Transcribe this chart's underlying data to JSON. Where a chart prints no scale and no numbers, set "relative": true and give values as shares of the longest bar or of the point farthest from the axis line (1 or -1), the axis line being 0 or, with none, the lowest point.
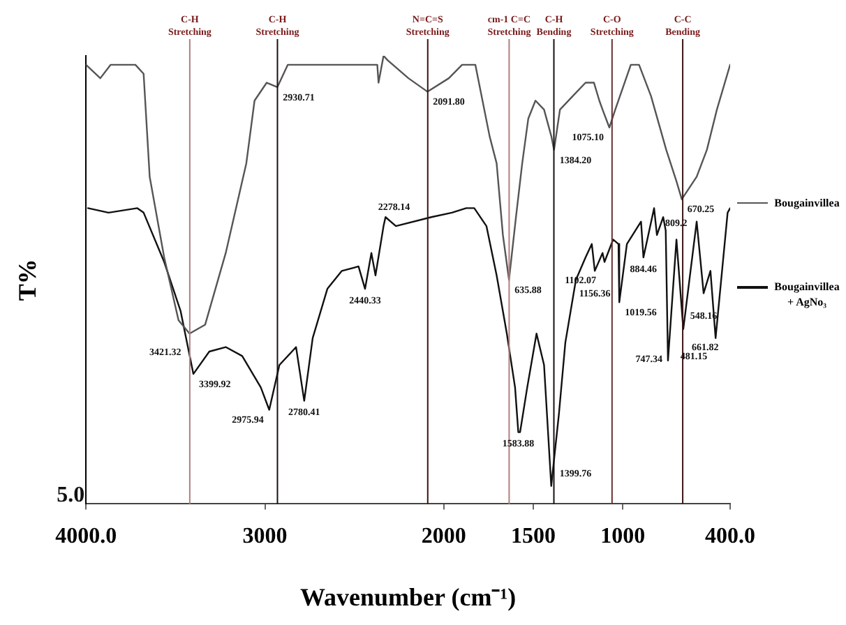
{
  "chart_data": {
    "type": "line",
    "xlabel": "Wavenumber (cm⁻¹)",
    "ylabel": "T%",
    "relative": true,
    "xlim": [
      4000,
      400
    ],
    "xticks": [
      {
        "value": 4000,
        "label": "4000.0"
      },
      3000,
      2000,
      1500,
      1000,
      {
        "value": 400,
        "label": "400.0"
      }
    ],
    "grid": false,
    "legend": "right",
    "marker": "none",
    "line_style": "solid",
    "series": [
      {
        "name": "Bougainvillea",
        "color": "#555555",
        "x": [
          4000,
          3920,
          3862,
          3724,
          3678,
          3644,
          3563,
          3483,
          3421.32,
          3334,
          3219,
          3104,
          3058,
          2990,
          2930.71,
          2872,
          2372,
          2365,
          2337,
          2314,
          2198,
          2091.8,
          1972,
          1898,
          1824,
          1744,
          1705,
          1670,
          1635.88,
          1597,
          1562,
          1528,
          1488,
          1440,
          1399,
          1384.2,
          1351,
          1280,
          1208,
          1161,
          1131,
          1113,
          1075.1,
          1042,
          955,
          909,
          842,
          757,
          700,
          670.25,
          587,
          530,
          474,
          400
        ],
        "values": [
          0.98,
          0.95,
          0.98,
          0.98,
          0.96,
          0.73,
          0.55,
          0.41,
          0.38,
          0.4,
          0.56,
          0.76,
          0.9,
          0.94,
          0.93,
          0.98,
          0.98,
          0.94,
          1,
          0.99,
          0.95,
          0.92,
          0.95,
          0.98,
          0.98,
          0.82,
          0.76,
          0.6,
          0.5,
          0.64,
          0.76,
          0.86,
          0.9,
          0.88,
          0.82,
          0.79,
          0.88,
          0.91,
          0.94,
          0.94,
          0.9,
          0.88,
          0.84,
          0.88,
          0.98,
          0.98,
          0.91,
          0.79,
          0.72,
          0.68,
          0.73,
          0.79,
          0.88,
          0.98
        ]
      },
      {
        "name": "Bougainvillea + AgNo₃",
        "color": "#111111",
        "x": [
          3989,
          3874,
          3713,
          3678,
          3563,
          3471,
          3399.92,
          3311,
          3219,
          3127,
          3023,
          2975.94,
          2919,
          2849,
          2826,
          2780.41,
          2733,
          2651,
          2570,
          2477,
          2440.33,
          2405,
          2382,
          2337,
          2326,
          2268,
          2070,
          1955,
          1875,
          1830,
          1762,
          1705,
          1648,
          1602,
          1583.88,
          1574,
          1534,
          1482,
          1440,
          1399.76,
          1357,
          1321,
          1262,
          1208,
          1173,
          1156.36,
          1113,
          1102.07,
          1054,
          1024,
          1019.56,
          977,
          898,
          884.46,
          825,
          809.2,
          774,
          760,
          747.34,
          700,
          661.82,
          587,
          548.16,
          510,
          481.15,
          414,
          400
        ],
        "values": [
          0.66,
          0.65,
          0.66,
          0.65,
          0.54,
          0.43,
          0.29,
          0.34,
          0.35,
          0.33,
          0.26,
          0.21,
          0.31,
          0.34,
          0.35,
          0.23,
          0.37,
          0.48,
          0.52,
          0.53,
          0.48,
          0.56,
          0.51,
          0.62,
          0.64,
          0.62,
          0.64,
          0.65,
          0.66,
          0.66,
          0.62,
          0.51,
          0.38,
          0.26,
          0.16,
          0.16,
          0.26,
          0.38,
          0.31,
          0.04,
          0.2,
          0.36,
          0.5,
          0.55,
          0.58,
          0.52,
          0.56,
          0.54,
          0.59,
          0.58,
          0.45,
          0.58,
          0.63,
          0.55,
          0.66,
          0.6,
          0.64,
          0.61,
          0.32,
          0.59,
          0.39,
          0.63,
          0.47,
          0.52,
          0.37,
          0.65,
          0.66
        ]
      }
    ],
    "ref_lines": [
      {
        "axis": "x",
        "value": 3420,
        "label": "C-H\nStretching",
        "color": "#b08080"
      },
      {
        "axis": "x",
        "value": 2930,
        "label": "C-H\nStretching",
        "color": "#1a1010"
      },
      {
        "axis": "x",
        "value": 2090,
        "label": "N=C=S\nStretching",
        "color": "#3a1515"
      },
      {
        "axis": "x",
        "value": 1635,
        "label": "cm-1 C=C\nStretching",
        "color": "#b08080"
      },
      {
        "axis": "x",
        "value": 1385,
        "label": "C-H\nBending",
        "color": "#1a1010"
      },
      {
        "axis": "x",
        "value": 1060,
        "label": "C-O\nStretching",
        "color": "#6a3030"
      },
      {
        "axis": "x",
        "value": 665,
        "label": "C-C\nBending",
        "color": "#3a1515"
      }
    ],
    "annotations": [
      "5.0",
      {
        "text": "3421.32",
        "x": 3421.32,
        "y": 0.38
      },
      {
        "text": "2930.71",
        "x": 2930.71,
        "y": 0.93
      },
      {
        "text": "2091.80",
        "x": 2091.8,
        "y": 0.92
      },
      {
        "text": "635.88",
        "x": 1635.88,
        "y": 0.5
      },
      {
        "text": "1384.20",
        "x": 1384.2,
        "y": 0.79
      },
      {
        "text": "1075.10",
        "x": 1075.1,
        "y": 0.84
      },
      {
        "text": "670.25",
        "x": 670.25,
        "y": 0.68
      },
      {
        "text": "3399.92",
        "x": 3399.92,
        "y": 0.29
      },
      {
        "text": "2975.94",
        "x": 2975.94,
        "y": 0.21
      },
      {
        "text": "2780.41",
        "x": 2780.41,
        "y": 0.23
      },
      {
        "text": "2440.33",
        "x": 2440.33,
        "y": 0.48
      },
      {
        "text": "2278.14",
        "x": 2278.14,
        "y": 0.62
      },
      {
        "text": "1583.88",
        "x": 1583.88,
        "y": 0.16
      },
      {
        "text": "1399.76",
        "x": 1399.76,
        "y": 0.04
      },
      {
        "text": "1156.36",
        "x": 1156.36,
        "y": 0.52
      },
      {
        "text": "1102.07",
        "x": 1102.07,
        "y": 0.54
      },
      {
        "text": "1019.56",
        "x": 1019.56,
        "y": 0.45
      },
      {
        "text": "884.46",
        "x": 884.46,
        "y": 0.55
      },
      {
        "text": "809.2",
        "x": 809.2,
        "y": 0.6
      },
      {
        "text": "747.34",
        "x": 747.34,
        "y": 0.32
      },
      {
        "text": "661.82",
        "x": 661.82,
        "y": 0.39
      },
      {
        "text": "548.16",
        "x": 548.16,
        "y": 0.47
      },
      {
        "text": "481.15",
        "x": 481.15,
        "y": 0.37
      }
    ]
  }
}
